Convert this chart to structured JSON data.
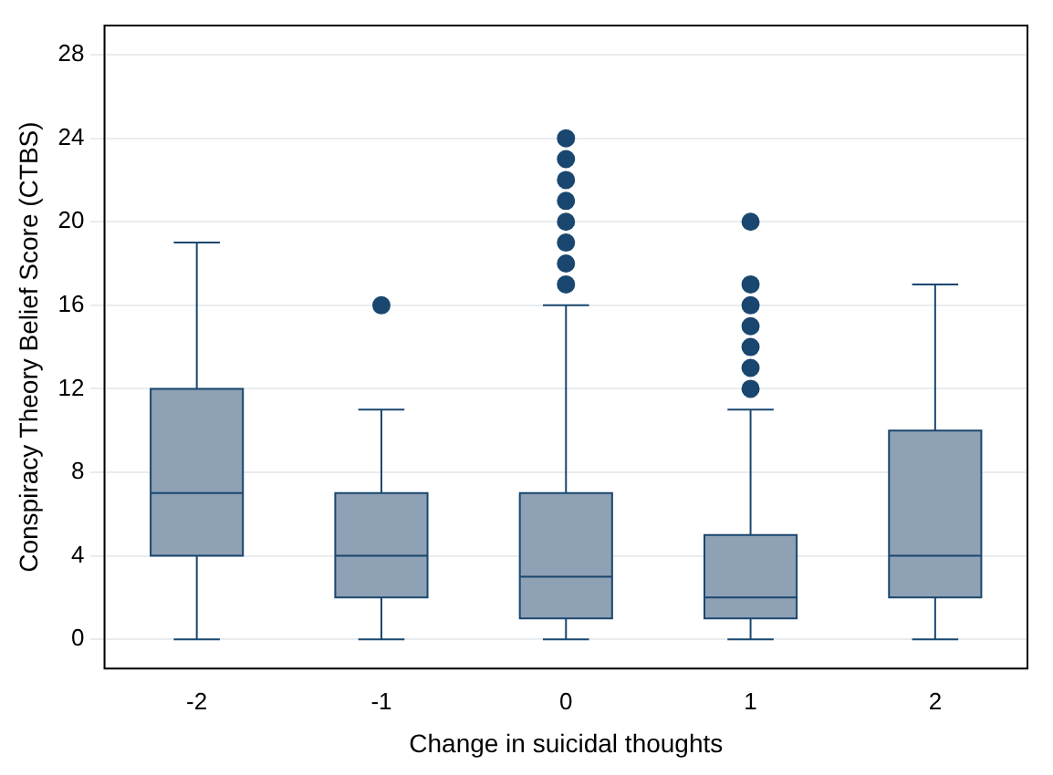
{
  "chart_data": {
    "type": "box",
    "xlabel": "Change in suicidal thoughts",
    "ylabel": "Conspiracy Theory Belief Score (CTBS)",
    "categories": [
      "-2",
      "-1",
      "0",
      "1",
      "2"
    ],
    "color": "#8fa1b4",
    "boxes": [
      {
        "low": 0,
        "q1": 4,
        "median": 7,
        "q3": 12,
        "high": 19
      },
      {
        "low": 0,
        "q1": 2,
        "median": 4,
        "q3": 7,
        "high": 11,
        "outliers": [
          16
        ]
      },
      {
        "low": 0,
        "q1": 1,
        "median": 3,
        "q3": 7,
        "high": 16,
        "outliers": [
          17,
          18,
          19,
          20,
          21,
          22,
          23,
          24
        ]
      },
      {
        "low": 0,
        "q1": 1,
        "median": 2,
        "q3": 5,
        "high": 11,
        "outliers": [
          12,
          13,
          14,
          15,
          16,
          17,
          20
        ]
      },
      {
        "low": 0,
        "q1": 2,
        "median": 4,
        "q3": 10,
        "high": 17
      }
    ],
    "ylim": [
      -1.4,
      29.4
    ],
    "yticks": [
      0,
      4,
      8,
      12,
      16,
      20,
      24,
      28
    ],
    "grid": "y"
  }
}
